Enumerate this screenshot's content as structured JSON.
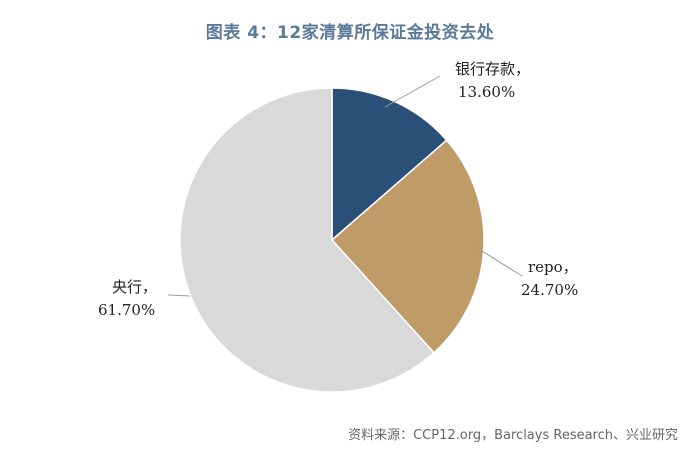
{
  "chart_data": {
    "type": "pie",
    "title": "图表 4：12家清算所保证金投资去处",
    "slices": [
      {
        "label": "银行存款，",
        "value": 13.6,
        "value_text": "13.60%",
        "color": "#2a5078"
      },
      {
        "label": "repo，",
        "value": 24.7,
        "value_text": "24.70%",
        "color": "#bf9b67"
      },
      {
        "label": "央行，",
        "value": 61.7,
        "value_text": "61.70%",
        "color": "#d9d9d9"
      }
    ],
    "start_angle": "12 o'clock",
    "direction": "clockwise",
    "labels": "outside with leader lines"
  },
  "source": "资料来源：CCP12.org，Barclays Research、兴业研究"
}
